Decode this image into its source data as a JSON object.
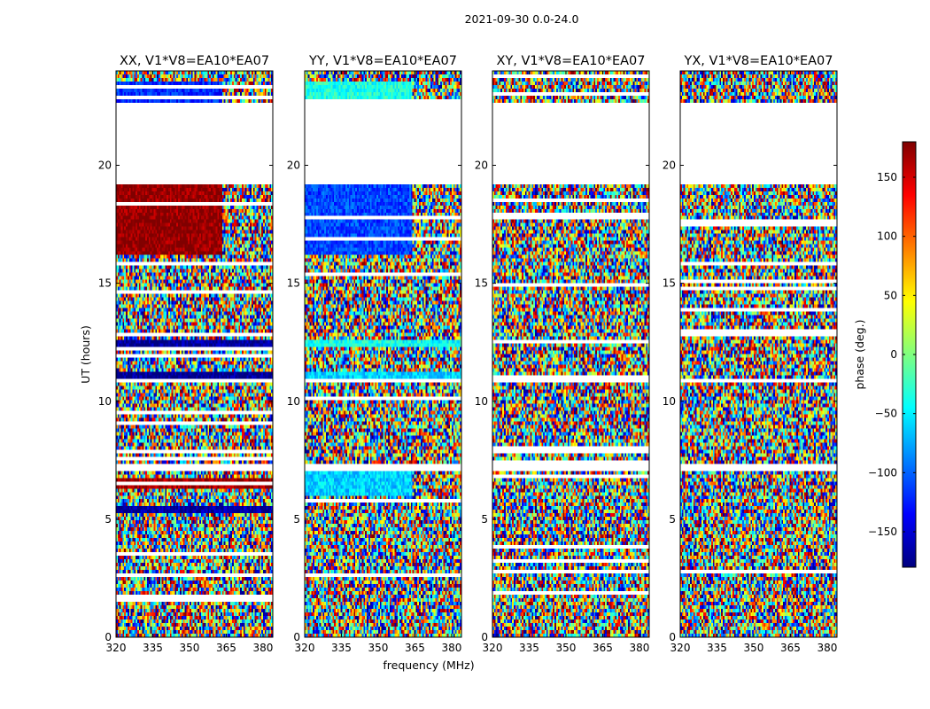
{
  "chart_data": {
    "type": "heatmap",
    "suptitle": "2021-09-30 0.0-24.0",
    "xlabel": "frequency (MHz)",
    "ylabel": "UT (hours)",
    "xlim": [
      320,
      384
    ],
    "ylim": [
      0,
      24
    ],
    "xticks": [
      320,
      335,
      350,
      365,
      380
    ],
    "yticks": [
      0,
      5,
      10,
      15,
      20
    ],
    "colorbar": {
      "label": "phase (deg.)",
      "range": [
        -180,
        180
      ],
      "ticks": [
        150,
        100,
        50,
        0,
        -50,
        -100,
        -150
      ],
      "tick_labels": [
        "150",
        "100",
        "50",
        "0",
        "−50",
        "−100",
        "−150"
      ],
      "colormap": "jet",
      "colors": [
        "#00007f",
        "#0000ff",
        "#007fff",
        "#00ffff",
        "#7fff7f",
        "#ffff00",
        "#ff7f00",
        "#ff0000",
        "#7f0000"
      ]
    },
    "panels": [
      {
        "id": "xx",
        "title": "XX, V1*V8=EA10*EA07",
        "phase_bands": [
          {
            "t0": 22.6,
            "t1": 23.6,
            "phase": -120,
            "f_end": 363
          },
          {
            "t0": 16.2,
            "t1": 19.2,
            "phase": 175,
            "f_end": 363
          },
          {
            "t0": 12.2,
            "t1": 12.6,
            "phase": -170,
            "f_end": 384
          },
          {
            "t0": 11.0,
            "t1": 11.25,
            "phase": -175,
            "f_end": 384
          },
          {
            "t0": 6.3,
            "t1": 6.7,
            "phase": 170,
            "f_end": 384
          },
          {
            "t0": 5.3,
            "t1": 5.5,
            "phase": -170,
            "f_end": 384
          }
        ]
      },
      {
        "id": "yy",
        "title": "YY, V1*V8=EA10*EA07",
        "phase_bands": [
          {
            "t0": 22.6,
            "t1": 23.6,
            "phase": -35,
            "f_end": 364
          },
          {
            "t0": 16.2,
            "t1": 19.2,
            "phase": -110,
            "f_end": 364
          },
          {
            "t0": 12.3,
            "t1": 12.6,
            "phase": -40,
            "f_end": 384
          },
          {
            "t0": 11.0,
            "t1": 11.25,
            "phase": -60,
            "f_end": 384
          },
          {
            "t0": 6.0,
            "t1": 7.0,
            "phase": -60,
            "f_end": 364
          }
        ]
      },
      {
        "id": "xy",
        "title": "XY, V1*V8=EA10*EA07",
        "phase_bands": []
      },
      {
        "id": "yx",
        "title": "YX, V1*V8=EA10*EA07",
        "phase_bands": []
      }
    ],
    "flagged_ranges_ut": [
      [
        19.2,
        22.6
      ],
      [
        10.8,
        11.0
      ],
      [
        7.1,
        7.3
      ],
      [
        0.0,
        0.05
      ]
    ]
  }
}
